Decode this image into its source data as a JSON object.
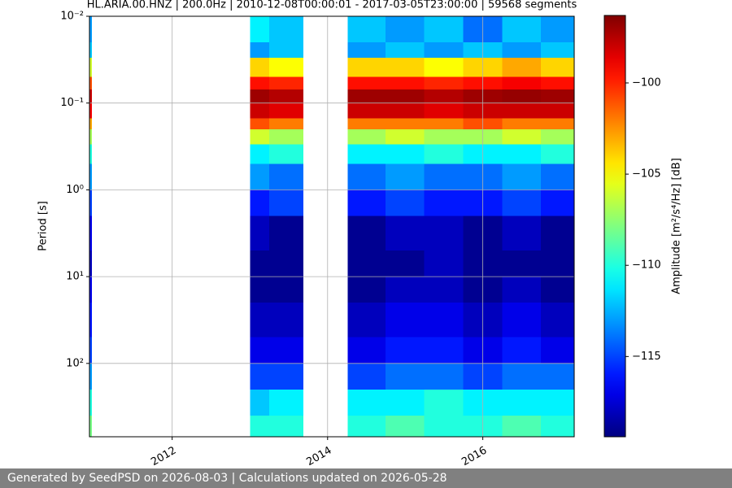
{
  "chart_data": {
    "type": "spectrogram",
    "title": "HL.ARIA.00.HNZ | 200.0Hz | 2010-12-08T00:00:01 - 2017-03-05T23:00:00 | 59568 segments",
    "y_label": "Period [s]",
    "colorbar_label": "Amplitude [m²/s⁴/Hz] [dB]",
    "xlim": [
      "2010-12-08T00:00:01",
      "2017-03-05T23:00:00"
    ],
    "xticks": [
      2012,
      2014,
      2016
    ],
    "ylim": [
      0.01,
      700
    ],
    "y_log": true,
    "y_inverted": true,
    "yticks": [
      {
        "value": 0.01,
        "label": "10⁻²"
      },
      {
        "value": 0.1,
        "label": "10⁻¹"
      },
      {
        "value": 1,
        "label": "10⁰"
      },
      {
        "value": 10,
        "label": "10¹"
      },
      {
        "value": 100,
        "label": "10²"
      }
    ],
    "clim": [
      -119.4,
      -96.3
    ],
    "cticks": [
      {
        "value": -100,
        "label": "−100"
      },
      {
        "value": -105,
        "label": "−105"
      },
      {
        "value": -110,
        "label": "−110"
      },
      {
        "value": -115,
        "label": "−115"
      }
    ],
    "colormap": "jet",
    "grid": true,
    "time_bins": [
      "2010-12-08",
      "2010-12-20",
      "2013-01-01",
      "2013-04-01",
      "2013-09-10",
      "2014-04-05",
      "2014-10-01",
      "2015-04-01",
      "2015-10-01",
      "2016-04-01",
      "2016-10-01",
      "2017-03-05"
    ],
    "period_bins": [
      0.01,
      0.02,
      0.03,
      0.05,
      0.07,
      0.1,
      0.15,
      0.2,
      0.3,
      0.5,
      1,
      2,
      5,
      10,
      20,
      50,
      100,
      200,
      400,
      700
    ],
    "values": [
      [
        -113,
        null,
        -111,
        -112,
        null,
        -112,
        -113,
        -112,
        -114,
        -112,
        -113
      ],
      [
        -112,
        null,
        -113,
        -112,
        null,
        -113,
        -112,
        -113,
        -112,
        -113,
        -112
      ],
      [
        -106,
        null,
        -104,
        -105,
        null,
        -104,
        -104,
        -105,
        -104,
        -103,
        -104
      ],
      [
        -101,
        null,
        -99.5,
        -100,
        null,
        -99.5,
        -99.5,
        -100,
        -99.5,
        -99,
        -99.5
      ],
      [
        -98,
        null,
        -97,
        -97.5,
        null,
        -97,
        -97,
        -97.5,
        -97,
        -96.8,
        -97
      ],
      [
        -99,
        null,
        -98,
        -98.5,
        null,
        -98,
        -98,
        -98.5,
        -98,
        -98,
        -98
      ],
      [
        -103,
        null,
        -101,
        -102,
        null,
        -102,
        -102,
        -102,
        -101,
        -102,
        -102
      ],
      [
        -107,
        null,
        -106,
        -107,
        null,
        -107,
        -106,
        -107,
        -107,
        -106,
        -107
      ],
      [
        -110,
        null,
        -111,
        -110,
        null,
        -111,
        -111,
        -110,
        -111,
        -111,
        -110
      ],
      [
        -113,
        null,
        -113,
        -114,
        null,
        -114,
        -113,
        -114,
        -114,
        -113,
        -114
      ],
      [
        -115,
        null,
        -116,
        -115,
        null,
        -116,
        -115,
        -116,
        -116,
        -115,
        -116
      ],
      [
        -117,
        null,
        -118,
        -119,
        null,
        -119,
        -118,
        -118,
        -119,
        -118,
        -119
      ],
      [
        -118,
        null,
        -119,
        -119,
        null,
        -119,
        -119,
        -118,
        -119,
        -119,
        -119
      ],
      [
        -117,
        null,
        -119,
        -119,
        null,
        -119,
        -118,
        -118,
        -119,
        -118,
        -119
      ],
      [
        -116,
        null,
        -118,
        -118,
        null,
        -118,
        -117,
        -117,
        -118,
        -117,
        -118
      ],
      [
        -115,
        null,
        -117,
        -117,
        null,
        -117,
        -116,
        -116,
        -117,
        -116,
        -117
      ],
      [
        -113,
        null,
        -115,
        -115,
        null,
        -115,
        -114,
        -114,
        -115,
        -114,
        -114
      ],
      [
        -110,
        null,
        -112,
        -111,
        null,
        -111,
        -111,
        -110,
        -111,
        -111,
        -111
      ],
      [
        -108,
        null,
        -110,
        -110,
        null,
        -110,
        -109,
        -110,
        -110,
        -109,
        -110
      ]
    ]
  },
  "footer": "Generated by SeedPSD on 2026-08-03 | Calculations updated on 2026-05-28"
}
